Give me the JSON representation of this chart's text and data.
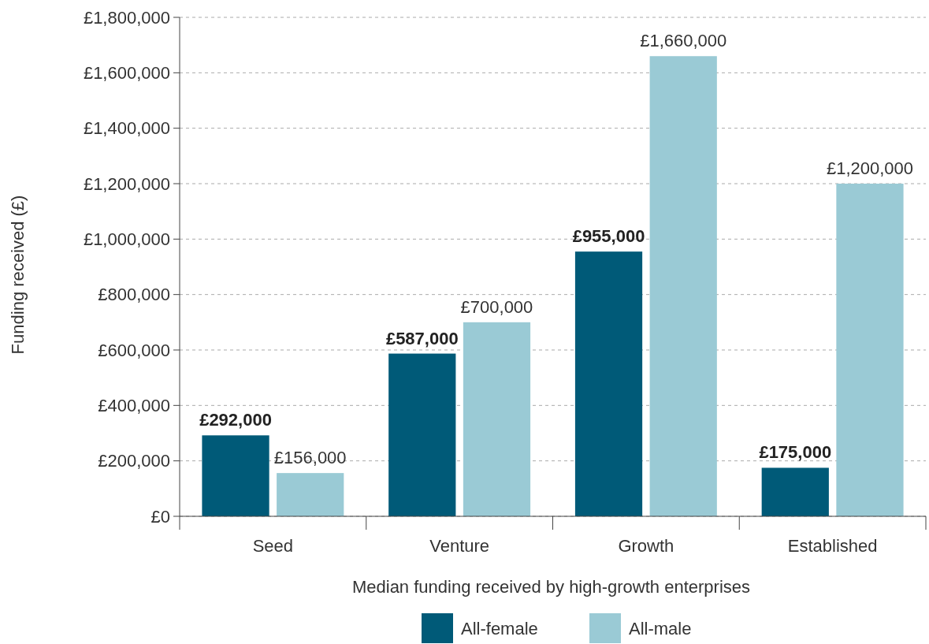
{
  "chart_data": {
    "type": "bar",
    "xlabel": "Median funding received by high-growth enterprises",
    "ylabel": "Funding received (£)",
    "categories": [
      "Seed",
      "Venture",
      "Growth",
      "Established"
    ],
    "series": [
      {
        "name": "All-female",
        "color": "#005a78",
        "values": [
          292000,
          587000,
          955000,
          175000
        ],
        "value_labels": [
          "£292,000",
          "£587,000",
          "£955,000",
          "£175,000"
        ]
      },
      {
        "name": "All-male",
        "color": "#9acad5",
        "values": [
          156000,
          700000,
          1660000,
          1200000
        ],
        "value_labels": [
          "£156,000",
          "£700,000",
          "£1,660,000",
          "£1,200,000"
        ]
      }
    ],
    "ylim": [
      0,
      1800000
    ],
    "yticks": [
      {
        "value": 0,
        "label": "£0"
      },
      {
        "value": 200000,
        "label": "£200,000"
      },
      {
        "value": 400000,
        "label": "£400,000"
      },
      {
        "value": 600000,
        "label": "£600,000"
      },
      {
        "value": 800000,
        "label": "£800,000"
      },
      {
        "value": 1000000,
        "label": "£1,000,000"
      },
      {
        "value": 1200000,
        "label": "£1,200,000"
      },
      {
        "value": 1400000,
        "label": "£1,400,000"
      },
      {
        "value": 1600000,
        "label": "£1,600,000"
      },
      {
        "value": 1800000,
        "label": "£1,800,000"
      }
    ],
    "grid": "y",
    "legend": "bottom"
  }
}
